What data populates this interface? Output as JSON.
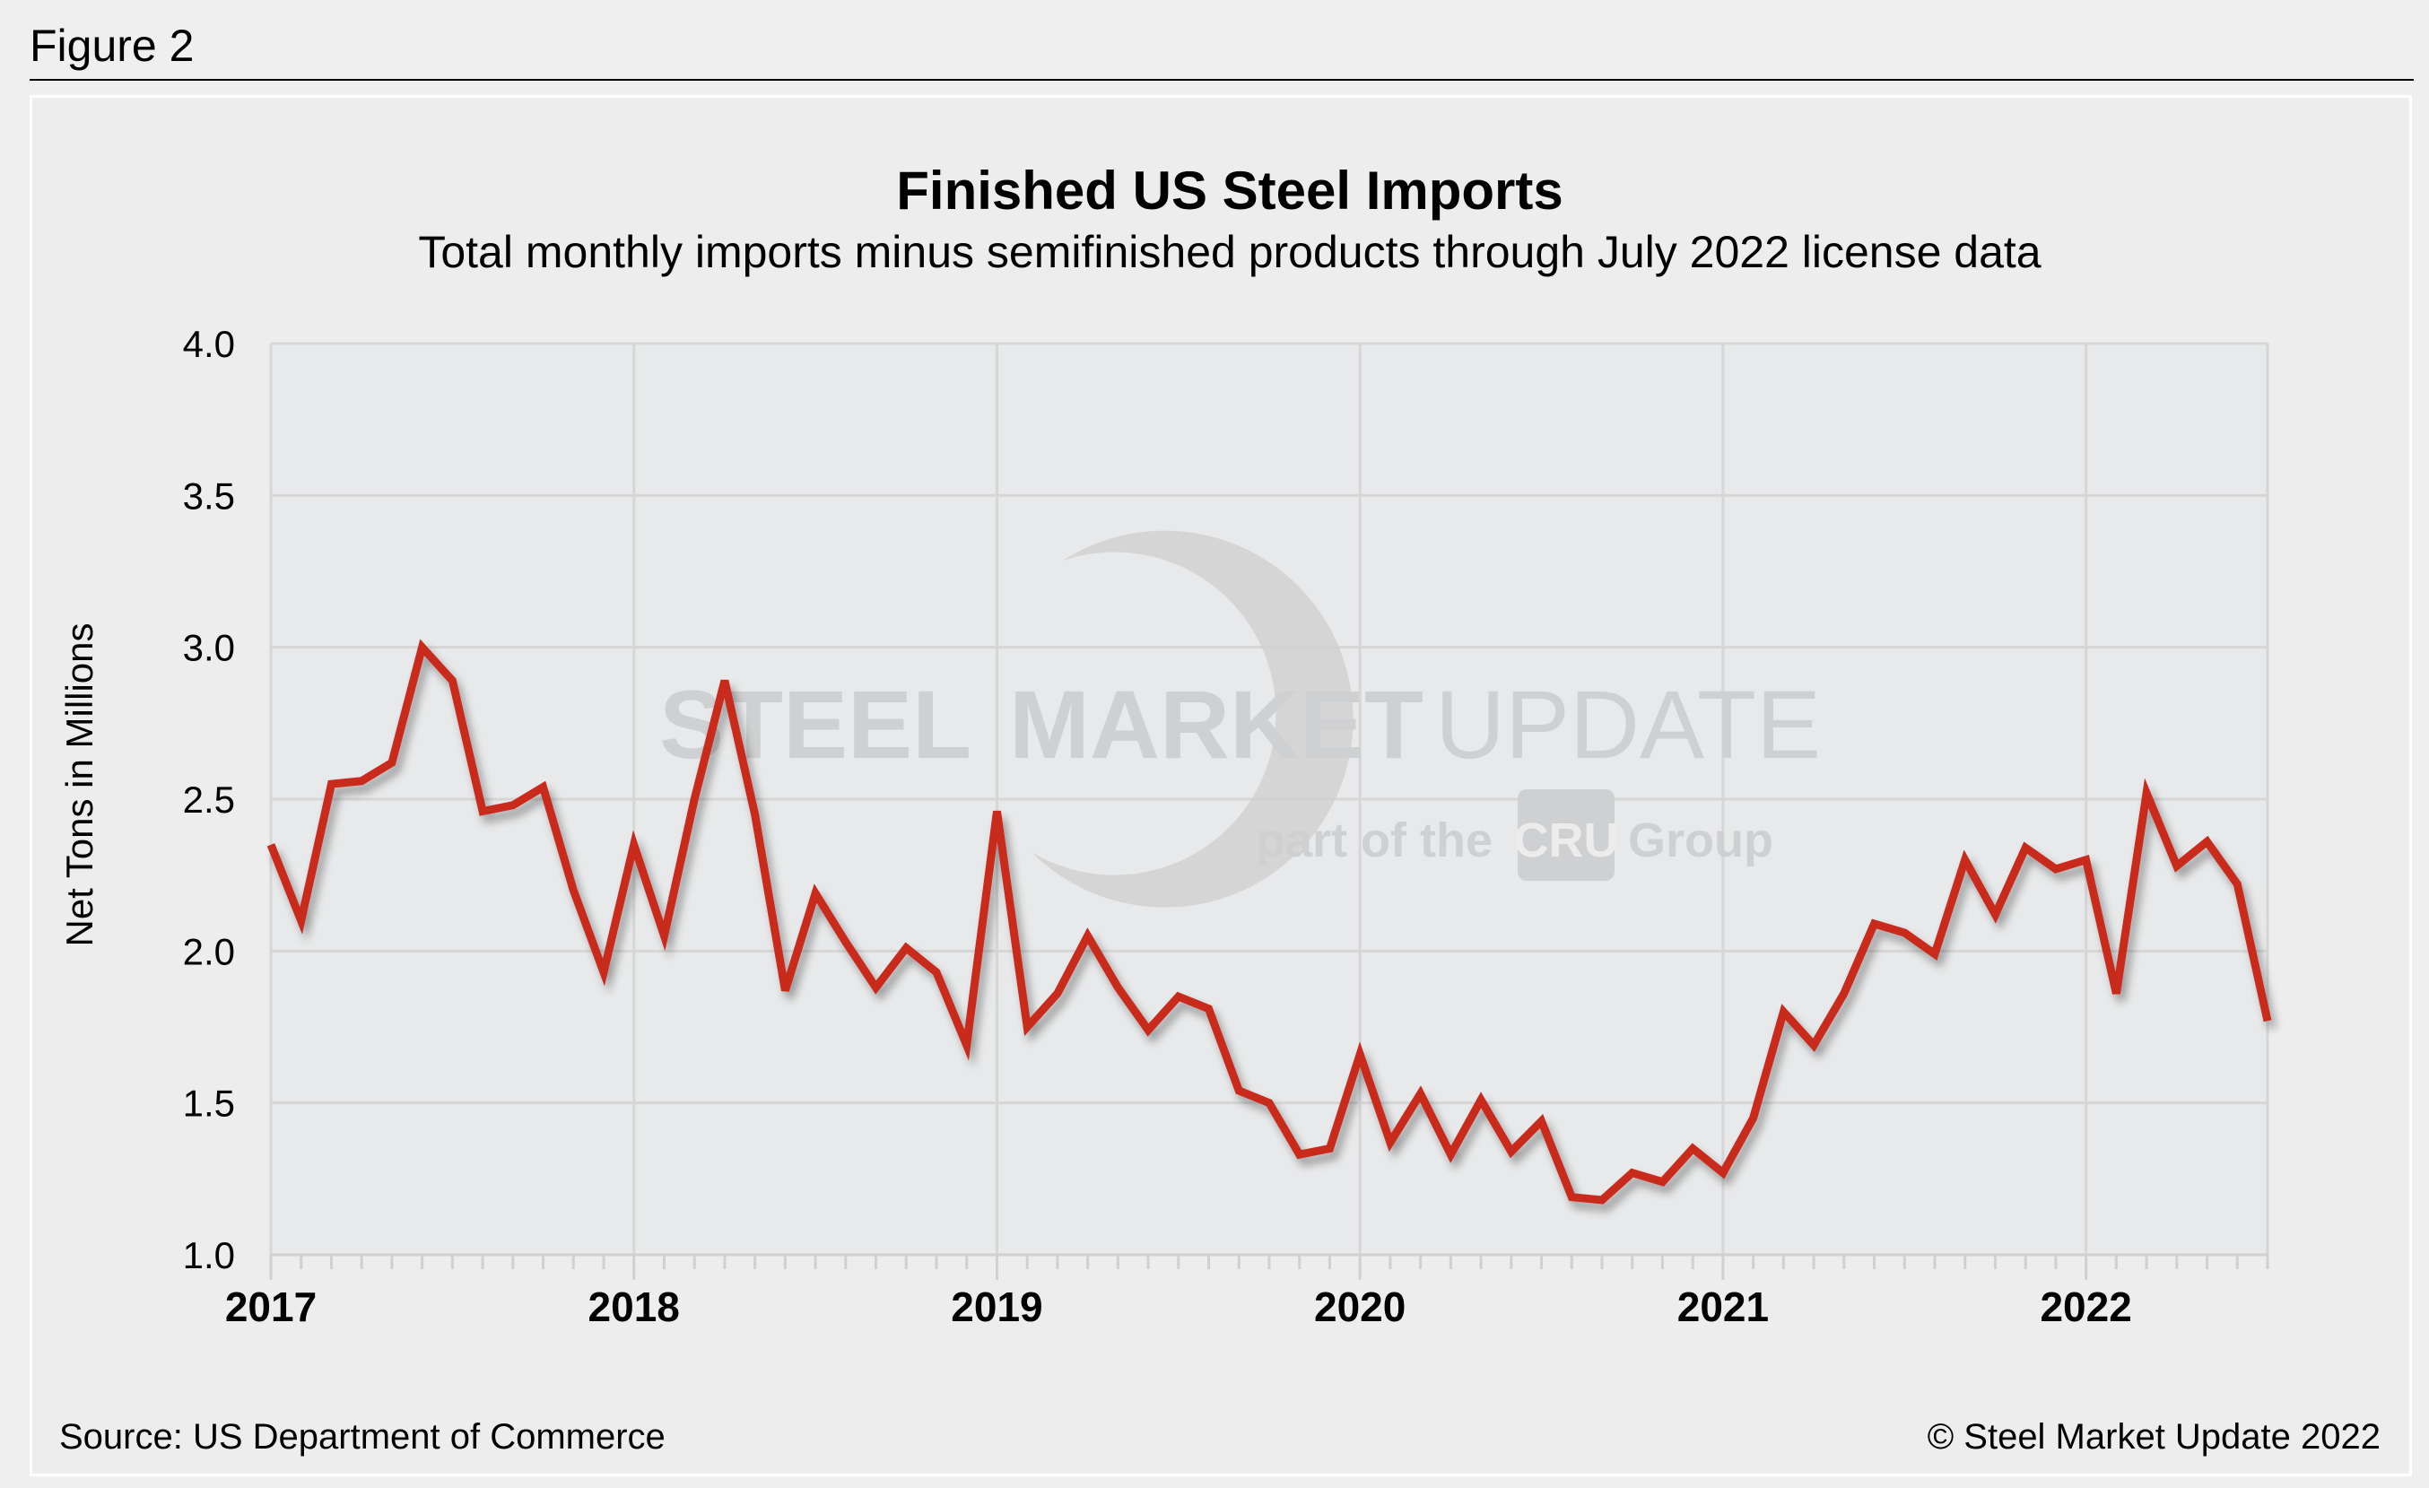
{
  "figure_label": "Figure 2",
  "watermark": {
    "line1a": "STEEL",
    "line1b": "MARKET",
    "line1c": "UPDATE",
    "line2a": "part of the",
    "line2b": "CRU",
    "line2c": "Group"
  },
  "footer": {
    "source": "Source: US Department of Commerce",
    "copyright": "© Steel Market Update 2022"
  },
  "colors": {
    "line": "#c8291f",
    "plot_bg": "#e8e9ea",
    "grid": "#d6d6d6"
  },
  "chart_data": {
    "type": "line",
    "title": "Finished US Steel Imports",
    "subtitle": "Total monthly imports minus semifinished products through July 2022 license data",
    "ylabel": "Net Tons in Millions",
    "xlabel": "",
    "ylim": [
      1.0,
      4.0
    ],
    "yticks": [
      "1.0",
      "1.5",
      "2.0",
      "2.5",
      "3.0",
      "3.5",
      "4.0"
    ],
    "xticks": [
      "2017",
      "2018",
      "2019",
      "2020",
      "2021",
      "2022"
    ],
    "x_range": [
      "2017-01",
      "2022-07"
    ],
    "grid": true,
    "legend": "none",
    "series": [
      {
        "x_start": "2017-01",
        "frequency": "monthly",
        "values": [
          2.35,
          2.1,
          2.55,
          2.56,
          2.62,
          3.0,
          2.89,
          2.46,
          2.48,
          2.54,
          2.2,
          1.93,
          2.35,
          2.05,
          2.5,
          2.89,
          2.45,
          1.87,
          2.19,
          2.03,
          1.88,
          2.01,
          1.93,
          1.69,
          2.46,
          1.75,
          1.86,
          2.05,
          1.88,
          1.74,
          1.85,
          1.81,
          1.54,
          1.5,
          1.33,
          1.35,
          1.66,
          1.37,
          1.53,
          1.33,
          1.51,
          1.34,
          1.44,
          1.19,
          1.18,
          1.27,
          1.24,
          1.35,
          1.27,
          1.45,
          1.8,
          1.69,
          1.86,
          2.09,
          2.06,
          1.99,
          2.3,
          2.12,
          2.34,
          2.27,
          2.3,
          1.86,
          2.52,
          2.28,
          2.36,
          2.22,
          1.77
        ]
      }
    ]
  }
}
